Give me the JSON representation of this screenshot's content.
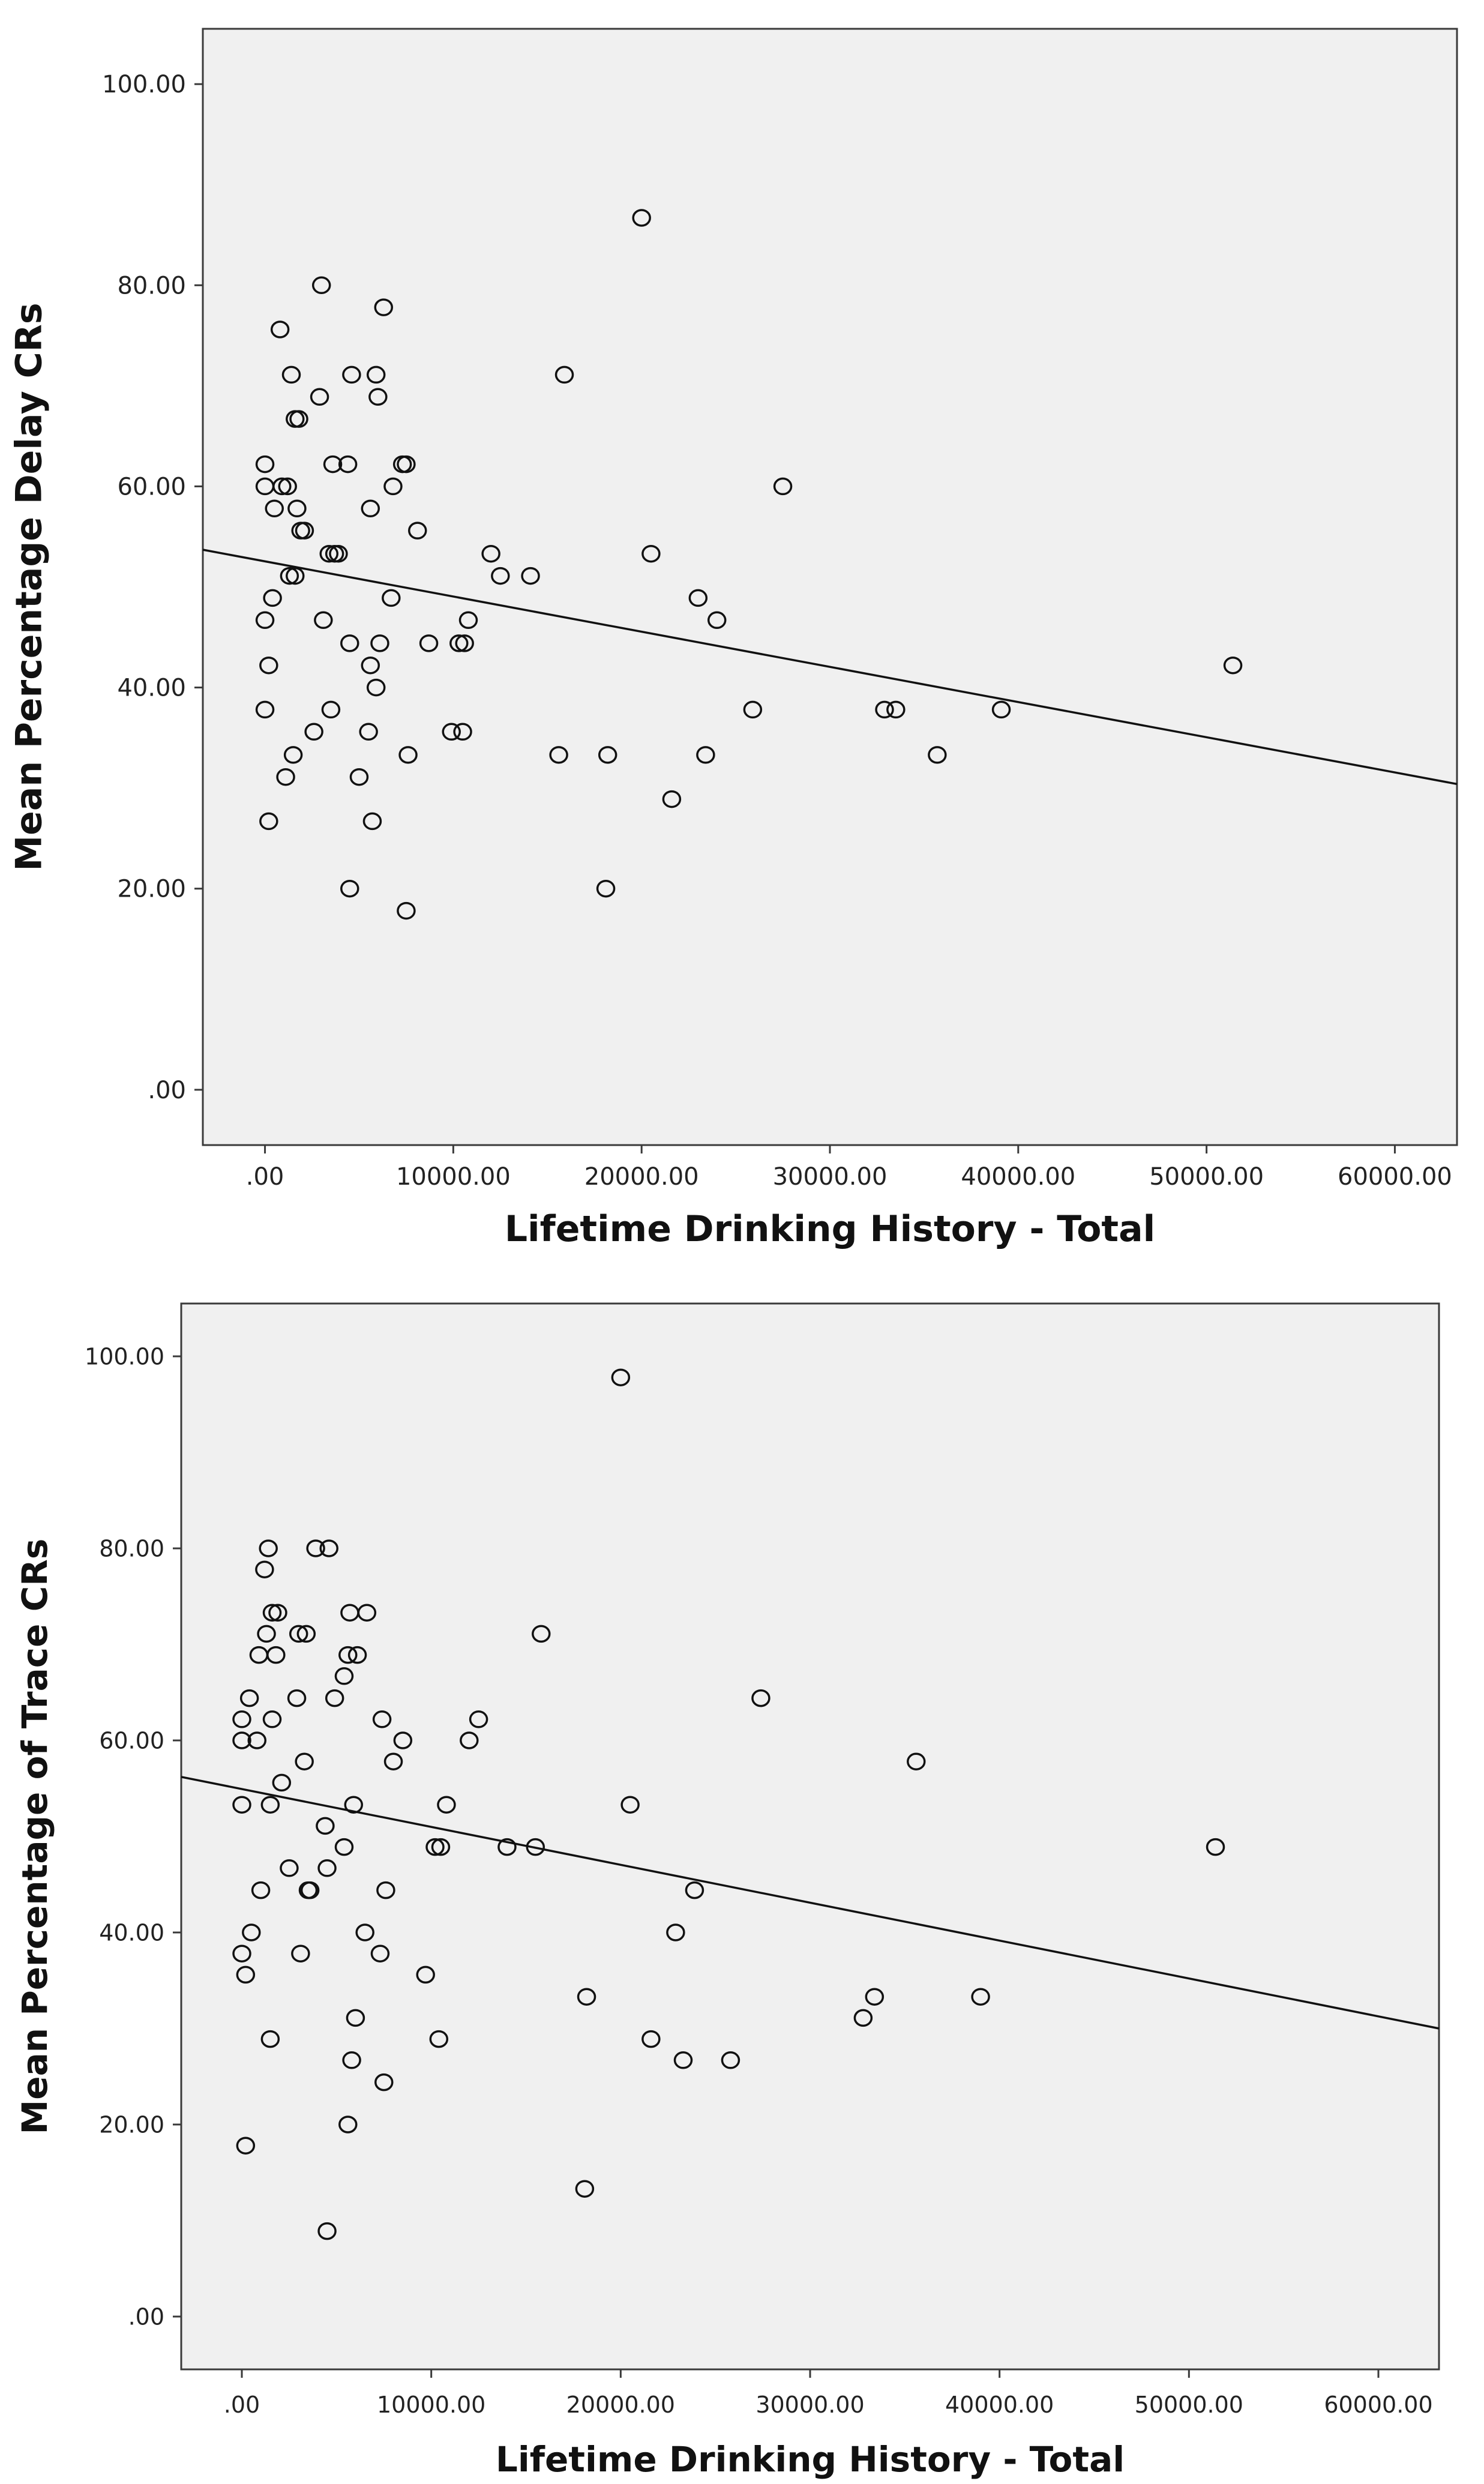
{
  "chart_data": [
    {
      "type": "scatter",
      "title": "",
      "xlabel": "Lifetime Drinking History -  Total",
      "ylabel": "Mean Percentage Delay CRs",
      "xlim": [
        -3300,
        63300
      ],
      "ylim": [
        -5.5,
        105.5
      ],
      "xticks": [
        0,
        10000,
        20000,
        30000,
        40000,
        50000,
        60000
      ],
      "xtick_labels": [
        ".00",
        "10000.00",
        "20000.00",
        "30000.00",
        "40000.00",
        "50000.00",
        "60000.00"
      ],
      "yticks": [
        0,
        20,
        40,
        60,
        80,
        100
      ],
      "ytick_labels": [
        ".00",
        "20.00",
        "40.00",
        "60.00",
        "80.00",
        "100.00"
      ],
      "fit_line": {
        "x0": -3300,
        "y0": 53.7,
        "x1": 63300,
        "y1": 30.4
      },
      "points": [
        [
          0,
          62.2
        ],
        [
          0,
          60
        ],
        [
          0,
          46.7
        ],
        [
          0,
          37.8
        ],
        [
          200,
          42.2
        ],
        [
          200,
          26.7
        ],
        [
          400,
          48.9
        ],
        [
          500,
          57.8
        ],
        [
          800,
          75.6
        ],
        [
          900,
          60
        ],
        [
          1100,
          31.1
        ],
        [
          1200,
          60
        ],
        [
          1300,
          51.1
        ],
        [
          1400,
          71.1
        ],
        [
          1500,
          33.3
        ],
        [
          1600,
          51.1
        ],
        [
          1600,
          66.7
        ],
        [
          1700,
          57.8
        ],
        [
          1800,
          66.7
        ],
        [
          1900,
          55.6
        ],
        [
          2100,
          55.6
        ],
        [
          2600,
          35.6
        ],
        [
          2900,
          68.9
        ],
        [
          3000,
          80
        ],
        [
          3100,
          46.7
        ],
        [
          3400,
          53.3
        ],
        [
          3500,
          37.8
        ],
        [
          3600,
          62.2
        ],
        [
          3700,
          53.3
        ],
        [
          3900,
          53.3
        ],
        [
          4400,
          62.2
        ],
        [
          4500,
          44.4
        ],
        [
          4500,
          20
        ],
        [
          4600,
          71.1
        ],
        [
          5000,
          31.1
        ],
        [
          5500,
          35.6
        ],
        [
          5600,
          42.2
        ],
        [
          5600,
          57.8
        ],
        [
          5700,
          26.7
        ],
        [
          5900,
          40
        ],
        [
          5900,
          71.1
        ],
        [
          6000,
          68.9
        ],
        [
          6100,
          44.4
        ],
        [
          6300,
          77.8
        ],
        [
          6700,
          48.9
        ],
        [
          6800,
          60
        ],
        [
          7300,
          62.2
        ],
        [
          7500,
          62.2
        ],
        [
          7500,
          17.8
        ],
        [
          7600,
          33.3
        ],
        [
          8100,
          55.6
        ],
        [
          8700,
          44.4
        ],
        [
          9900,
          35.6
        ],
        [
          10300,
          44.4
        ],
        [
          10500,
          35.6
        ],
        [
          10600,
          44.4
        ],
        [
          10800,
          46.7
        ],
        [
          12000,
          53.3
        ],
        [
          12500,
          51.1
        ],
        [
          14100,
          51.1
        ],
        [
          15600,
          33.3
        ],
        [
          15900,
          71.1
        ],
        [
          18100,
          20
        ],
        [
          18200,
          33.3
        ],
        [
          20000,
          86.7
        ],
        [
          20500,
          53.3
        ],
        [
          21600,
          28.9
        ],
        [
          23000,
          48.9
        ],
        [
          23400,
          33.3
        ],
        [
          24000,
          46.7
        ],
        [
          25900,
          37.8
        ],
        [
          27500,
          60
        ],
        [
          32900,
          37.8
        ],
        [
          33500,
          37.8
        ],
        [
          35700,
          33.3
        ],
        [
          39100,
          37.8
        ],
        [
          51400,
          42.2
        ]
      ]
    },
    {
      "type": "scatter",
      "title": "",
      "xlabel": "Lifetime Drinking History - Total",
      "ylabel": "Mean Percentage of Trace CRs",
      "xlim": [
        -3200,
        63200
      ],
      "ylim": [
        -5.5,
        105.5
      ],
      "xticks": [
        0,
        10000,
        20000,
        30000,
        40000,
        50000,
        60000
      ],
      "xtick_labels": [
        ".00",
        "10000.00",
        "20000.00",
        "30000.00",
        "40000.00",
        "50000.00",
        "60000.00"
      ],
      "yticks": [
        0,
        20,
        40,
        60,
        80,
        100
      ],
      "ytick_labels": [
        ".00",
        "20.00",
        "40.00",
        "60.00",
        "80.00",
        "100.00"
      ],
      "fit_line": {
        "x0": -3200,
        "y0": 56.2,
        "x1": 63200,
        "y1": 30
      },
      "points": [
        [
          0,
          62.2
        ],
        [
          0,
          60
        ],
        [
          0,
          53.3
        ],
        [
          0,
          37.8
        ],
        [
          200,
          35.6
        ],
        [
          200,
          17.8
        ],
        [
          400,
          64.4
        ],
        [
          500,
          40
        ],
        [
          800,
          60
        ],
        [
          900,
          68.9
        ],
        [
          1000,
          44.4
        ],
        [
          1200,
          77.8
        ],
        [
          1300,
          71.1
        ],
        [
          1400,
          80
        ],
        [
          1500,
          28.9
        ],
        [
          1500,
          53.3
        ],
        [
          1600,
          62.2
        ],
        [
          1600,
          73.3
        ],
        [
          1800,
          68.9
        ],
        [
          1900,
          73.3
        ],
        [
          2100,
          55.6
        ],
        [
          2500,
          46.7
        ],
        [
          2900,
          64.4
        ],
        [
          3000,
          71.1
        ],
        [
          3100,
          37.8
        ],
        [
          3300,
          57.8
        ],
        [
          3400,
          71.1
        ],
        [
          3500,
          44.4
        ],
        [
          3600,
          44.4
        ],
        [
          3900,
          80
        ],
        [
          4400,
          51.1
        ],
        [
          4500,
          46.7
        ],
        [
          4500,
          8.9
        ],
        [
          4600,
          80
        ],
        [
          4900,
          64.4
        ],
        [
          5400,
          48.9
        ],
        [
          5400,
          66.7
        ],
        [
          5600,
          20
        ],
        [
          5600,
          68.9
        ],
        [
          5700,
          73.3
        ],
        [
          5800,
          26.7
        ],
        [
          5900,
          53.3
        ],
        [
          6000,
          31.1
        ],
        [
          6100,
          68.9
        ],
        [
          6500,
          40
        ],
        [
          6600,
          73.3
        ],
        [
          7300,
          37.8
        ],
        [
          7400,
          62.2
        ],
        [
          7500,
          24.4
        ],
        [
          7600,
          44.4
        ],
        [
          8000,
          57.8
        ],
        [
          8500,
          60
        ],
        [
          9700,
          35.6
        ],
        [
          10200,
          48.9
        ],
        [
          10400,
          28.9
        ],
        [
          10500,
          48.9
        ],
        [
          10800,
          53.3
        ],
        [
          12000,
          60
        ],
        [
          12500,
          62.2
        ],
        [
          14000,
          48.9
        ],
        [
          15500,
          48.9
        ],
        [
          15800,
          71.1
        ],
        [
          18100,
          13.3
        ],
        [
          18200,
          33.3
        ],
        [
          20000,
          97.8
        ],
        [
          20500,
          53.3
        ],
        [
          21600,
          28.9
        ],
        [
          22900,
          40
        ],
        [
          23300,
          26.7
        ],
        [
          23900,
          44.4
        ],
        [
          25800,
          26.7
        ],
        [
          27400,
          64.4
        ],
        [
          32800,
          31.1
        ],
        [
          33400,
          33.3
        ],
        [
          35600,
          57.8
        ],
        [
          39000,
          33.3
        ],
        [
          51400,
          48.9
        ]
      ]
    }
  ]
}
